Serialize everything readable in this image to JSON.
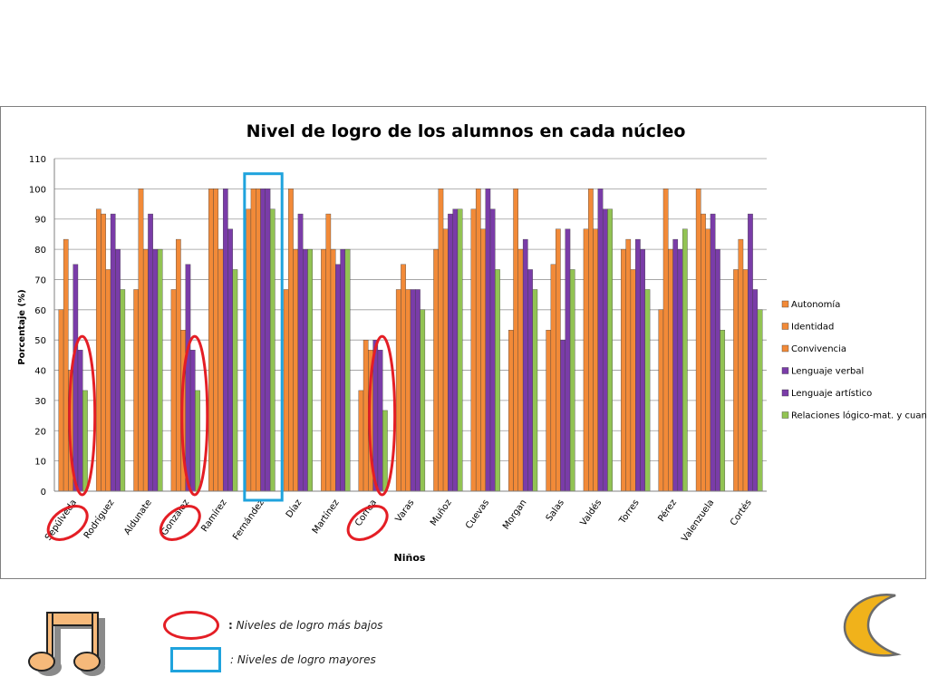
{
  "chart_data": {
    "type": "bar",
    "title": "Nivel de logro de los alumnos en cada núcleo",
    "xlabel": "Niños",
    "ylabel": "Porcentaje (%)",
    "ylim": [
      0,
      110
    ],
    "yticks": [
      0,
      10,
      20,
      30,
      40,
      50,
      60,
      70,
      80,
      90,
      100,
      110
    ],
    "grid": "horizontal",
    "legend_position": "right",
    "categories": [
      "Sepúlveda",
      "Rodríguez",
      "Aldunate",
      "González",
      "Ramírez",
      "Fernández",
      "Díaz",
      "Martínez",
      "Correa",
      "Varas",
      "Muñoz",
      "Cuevas",
      "Morgan",
      "Salas",
      "Valdés",
      "Torres",
      "Pérez",
      "Valenzuela",
      "Cortés"
    ],
    "series": [
      {
        "name": "Autonomía",
        "color": "#f28a38",
        "values": [
          60,
          93.3,
          66.7,
          66.7,
          100,
          93.3,
          66.7,
          80,
          33.3,
          66.7,
          80,
          93.3,
          53.3,
          53.3,
          86.7,
          80,
          60,
          100,
          73.3
        ]
      },
      {
        "name": "Identidad",
        "color": "#f28a38",
        "values": [
          83.3,
          91.7,
          100,
          83.3,
          100,
          100,
          100,
          91.7,
          50,
          75,
          100,
          100,
          100,
          75,
          100,
          83.3,
          100,
          91.7,
          83.3
        ]
      },
      {
        "name": "Convivencia",
        "color": "#f28a38",
        "values": [
          40,
          73.3,
          80,
          53.3,
          80,
          100,
          80,
          80,
          46.7,
          66.7,
          86.7,
          86.7,
          80,
          86.7,
          86.7,
          73.3,
          80,
          86.7,
          73.3
        ]
      },
      {
        "name": "Lenguaje verbal",
        "color": "#7a3ca8",
        "values": [
          75,
          91.7,
          91.7,
          75,
          100,
          100,
          91.7,
          75,
          50,
          66.7,
          91.7,
          100,
          83.3,
          50,
          100,
          83.3,
          83.3,
          91.7,
          91.7
        ]
      },
      {
        "name": "Lenguaje artístico",
        "color": "#7a3ca8",
        "values": [
          46.7,
          80,
          80,
          46.7,
          86.7,
          100,
          80,
          80,
          46.7,
          66.7,
          93.3,
          93.3,
          73.3,
          86.7,
          93.3,
          80,
          80,
          80,
          66.7
        ]
      },
      {
        "name": "Relaciones lógico-mat. y cuant.",
        "color": "#92c353",
        "values": [
          33.3,
          66.7,
          80,
          33.3,
          73.3,
          93.3,
          80,
          80,
          26.7,
          60,
          93.3,
          73.3,
          66.7,
          73.3,
          93.3,
          66.7,
          86.7,
          53.3,
          60
        ]
      }
    ],
    "annotations": {
      "low_marked": [
        "Sepúlveda",
        "González",
        "Correa"
      ],
      "high_marked": [
        "Fernández"
      ],
      "low_color": "#e41e25",
      "high_color": "#1fa3dd"
    }
  },
  "legend_key": {
    "low_label": "Niveles de logro más bajos",
    "low_prefix": ":",
    "high_label": "Niveles de logro mayores",
    "high_prefix": ":"
  },
  "icons": {
    "music": "music-notes-icon",
    "moon": "crescent-moon-icon"
  }
}
